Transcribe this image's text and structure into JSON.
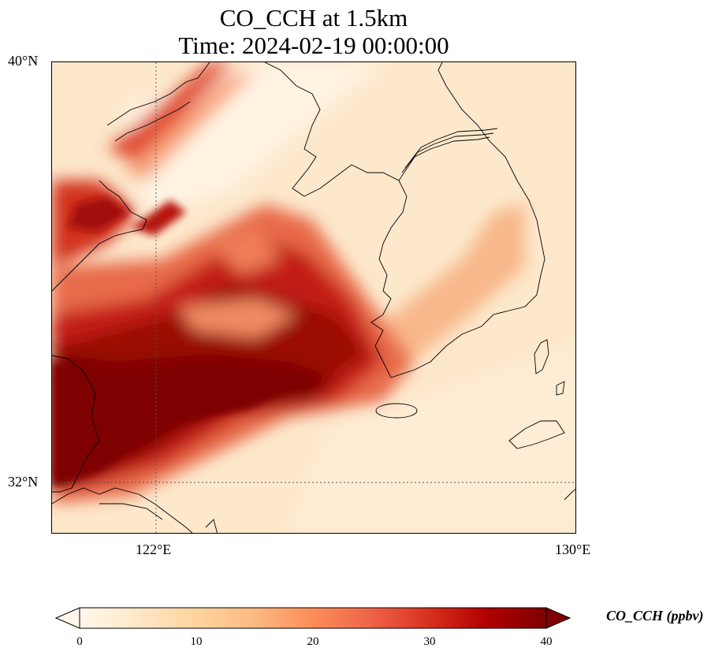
{
  "title": {
    "line1": "CO_CCH at 1.5km",
    "line2": "Time: 2024-02-19 00:00:00"
  },
  "map": {
    "lat_labels": [
      "40°N",
      "32°N"
    ],
    "lon_labels": [
      "122°E",
      "130°E"
    ],
    "extent": {
      "lon_min": 120.4,
      "lon_max": 130.0,
      "lat_min": 31.0,
      "lat_max": 40.0
    },
    "gridlines": {
      "lons": [
        122
      ],
      "lats": [
        32
      ],
      "style": "dotted"
    },
    "colormap": "OrRd"
  },
  "colorbar": {
    "label": "CO_CCH (ppbv)",
    "ticks": [
      "0",
      "10",
      "20",
      "30",
      "40"
    ],
    "min": 0,
    "max": 40,
    "extend": "both",
    "colors": [
      "#fff7ec",
      "#fee8c8",
      "#fdd49e",
      "#fdbb84",
      "#fc8d59",
      "#ef6548",
      "#d7301f",
      "#b30000",
      "#7f0000"
    ]
  }
}
